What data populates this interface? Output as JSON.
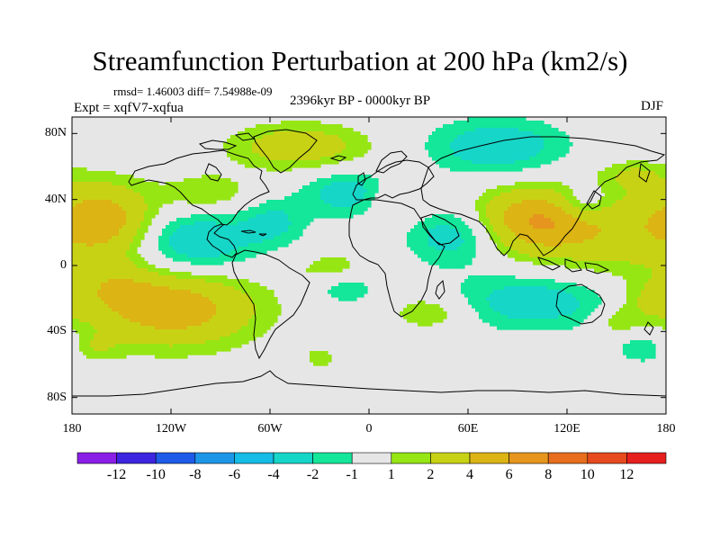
{
  "title": "Streamfunction Perturbation at 200 hPa (km2/s)",
  "stats_text": "rmsd= 1.46003 diff= 7.54988e-09",
  "experiment": "Expt = xqfV7-xqfua",
  "period": "2396kyr BP - 0000kyr BP",
  "season": "DJF",
  "map": {
    "projection": "cylindrical-equidistant",
    "background_color": "#e6e6e6",
    "lon_range": [
      -180,
      180
    ],
    "lat_range": [
      -90,
      90
    ],
    "lon_ticks": [
      {
        "value": -180,
        "label": "180"
      },
      {
        "value": -120,
        "label": "120W"
      },
      {
        "value": -60,
        "label": "60W"
      },
      {
        "value": 0,
        "label": "0"
      },
      {
        "value": 60,
        "label": "60E"
      },
      {
        "value": 120,
        "label": "120E"
      },
      {
        "value": 180,
        "label": "180"
      }
    ],
    "lat_ticks": [
      {
        "value": 80,
        "label": "80N"
      },
      {
        "value": 40,
        "label": "40N"
      },
      {
        "value": 0,
        "label": "0"
      },
      {
        "value": -40,
        "label": "40S"
      },
      {
        "value": -80,
        "label": "80S"
      }
    ],
    "anomalies": [
      {
        "lon": -160,
        "lat": 27,
        "sx": 22,
        "sy": 16,
        "amp": 5
      },
      {
        "lon": -155,
        "lat": -12,
        "sx": 18,
        "sy": 10,
        "amp": 1.8
      },
      {
        "lon": -120,
        "lat": -26,
        "sx": 36,
        "sy": 16,
        "amp": 5.4
      },
      {
        "lon": -106,
        "lat": 14,
        "sx": 26,
        "sy": 13,
        "amp": -3.6
      },
      {
        "lon": -98,
        "lat": 44,
        "sx": 18,
        "sy": 8,
        "amp": 2
      },
      {
        "lon": -42,
        "lat": 72,
        "sx": 30,
        "sy": 10,
        "amp": 3.2
      },
      {
        "lon": -58,
        "lat": 26,
        "sx": 14,
        "sy": 10,
        "amp": -2.2
      },
      {
        "lon": -12,
        "lat": 44,
        "sx": 20,
        "sy": 10,
        "amp": -3
      },
      {
        "lon": 15,
        "lat": 39,
        "sx": 12,
        "sy": 9,
        "amp": 2
      },
      {
        "lon": -22,
        "lat": -3,
        "sx": 16,
        "sy": 8,
        "amp": 1.8
      },
      {
        "lon": -15,
        "lat": -13,
        "sx": 14,
        "sy": 7,
        "amp": -2.2
      },
      {
        "lon": 38,
        "lat": -28,
        "sx": 18,
        "sy": 8,
        "amp": 2.2
      },
      {
        "lon": 52,
        "lat": 18,
        "sx": 20,
        "sy": 12,
        "amp": -3.2
      },
      {
        "lon": 78,
        "lat": 72,
        "sx": 30,
        "sy": 12,
        "amp": -3.2
      },
      {
        "lon": 100,
        "lat": 27,
        "sx": 26,
        "sy": 14,
        "amp": 5.8
      },
      {
        "lon": 130,
        "lat": 38,
        "sx": 12,
        "sy": 8,
        "amp": -2.6
      },
      {
        "lon": 150,
        "lat": 20,
        "sx": 30,
        "sy": 20,
        "amp": 2.6
      },
      {
        "lon": 160,
        "lat": 55,
        "sx": 14,
        "sy": 6,
        "amp": 1.8
      },
      {
        "lon": 100,
        "lat": -22,
        "sx": 38,
        "sy": 12,
        "amp": -3
      },
      {
        "lon": 170,
        "lat": -22,
        "sx": 14,
        "sy": 9,
        "amp": 2
      },
      {
        "lon": -170,
        "lat": -50,
        "sx": 12,
        "sy": 6,
        "amp": 2
      },
      {
        "lon": 170,
        "lat": -50,
        "sx": 14,
        "sy": 7,
        "amp": -2.2
      },
      {
        "lon": 150,
        "lat": -34,
        "sx": 10,
        "sy": 6,
        "amp": 1.8
      },
      {
        "lon": -30,
        "lat": -56,
        "sx": 6,
        "sy": 4,
        "amp": 1.8
      }
    ],
    "coastline_style": "black thin polylines"
  },
  "colorbar": {
    "levels": [
      "-12",
      "-10",
      "-8",
      "-6",
      "-4",
      "-2",
      "-1",
      "1",
      "2",
      "4",
      "6",
      "8",
      "10",
      "12"
    ],
    "level_values": [
      -12,
      -10,
      -8,
      -6,
      -4,
      -2,
      -1,
      1,
      2,
      4,
      6,
      8,
      10,
      12
    ],
    "colors": [
      "#8a1fe6",
      "#3c24e0",
      "#1e5be8",
      "#1e96e8",
      "#14bce6",
      "#16d6c8",
      "#14e69a",
      "#e6e6e6",
      "#96e614",
      "#c8d214",
      "#dcb414",
      "#e6961e",
      "#e66e1e",
      "#e64a1e",
      "#e61e1e"
    ]
  }
}
